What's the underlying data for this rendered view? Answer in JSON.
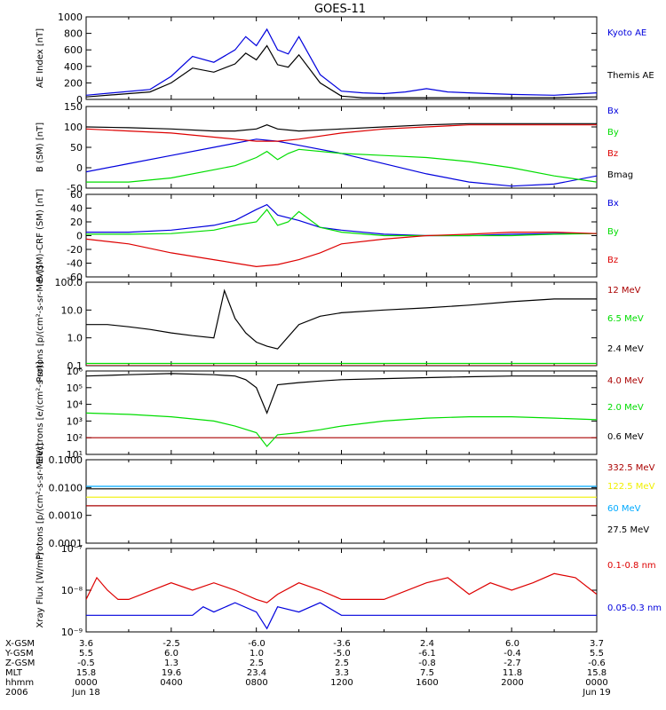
{
  "title": "GOES-11",
  "colors": {
    "black": "#000000",
    "blue": "#0000dd",
    "green": "#00dd00",
    "red": "#dd0000",
    "darkred": "#aa0000",
    "cyan": "#00aaff",
    "yellow": "#f0f000"
  },
  "chart_data": [
    {
      "id": "ae",
      "type": "line",
      "ylabel": "AE Index [nT]",
      "ylim": [
        0,
        1000
      ],
      "yscale": "linear",
      "yticks": [
        "0",
        "200",
        "400",
        "600",
        "800",
        "1000"
      ],
      "series": [
        {
          "name": "Kyoto AE",
          "color": "blue",
          "x": [
            0,
            3,
            4,
            5,
            6,
            7,
            7.5,
            8,
            8.5,
            9,
            9.5,
            10,
            11,
            12,
            13,
            14,
            15,
            16,
            17,
            18,
            20,
            22,
            24
          ],
          "y": [
            50,
            120,
            280,
            520,
            450,
            600,
            760,
            650,
            850,
            600,
            550,
            760,
            300,
            100,
            80,
            70,
            90,
            130,
            90,
            80,
            60,
            50,
            80
          ]
        },
        {
          "name": "Themis AE",
          "color": "black",
          "x": [
            0,
            3,
            4,
            5,
            6,
            7,
            7.5,
            8,
            8.5,
            9,
            9.5,
            10,
            11,
            12,
            13,
            14,
            15,
            16,
            17,
            18,
            20,
            22,
            24
          ],
          "y": [
            30,
            90,
            200,
            380,
            330,
            430,
            560,
            480,
            650,
            420,
            390,
            540,
            200,
            40,
            20,
            20,
            20,
            20,
            20,
            20,
            20,
            20,
            30
          ]
        }
      ]
    },
    {
      "id": "bsm",
      "type": "line",
      "ylabel": "B (SM) [nT]",
      "ylim": [
        -50,
        150
      ],
      "yscale": "linear",
      "yticks": [
        "-50",
        "0",
        "50",
        "100",
        "150"
      ],
      "series": [
        {
          "name": "Bx",
          "color": "blue",
          "x": [
            0,
            2,
            4,
            6,
            7,
            8,
            9,
            10,
            12,
            14,
            16,
            18,
            20,
            22,
            24
          ],
          "y": [
            -10,
            10,
            30,
            50,
            60,
            70,
            65,
            55,
            35,
            10,
            -15,
            -35,
            -45,
            -40,
            -20
          ]
        },
        {
          "name": "By",
          "color": "green",
          "x": [
            0,
            2,
            4,
            6,
            7,
            8,
            8.5,
            9,
            9.5,
            10,
            12,
            14,
            16,
            18,
            20,
            22,
            24
          ],
          "y": [
            -35,
            -35,
            -25,
            -5,
            5,
            25,
            40,
            20,
            35,
            45,
            35,
            30,
            25,
            15,
            0,
            -20,
            -35
          ]
        },
        {
          "name": "Bz",
          "color": "red",
          "x": [
            0,
            2,
            4,
            6,
            7,
            8,
            9,
            10,
            12,
            14,
            16,
            18,
            20,
            22,
            24
          ],
          "y": [
            95,
            90,
            85,
            75,
            70,
            65,
            65,
            70,
            85,
            95,
            100,
            105,
            105,
            105,
            105
          ]
        },
        {
          "name": "Bmag",
          "color": "black",
          "x": [
            0,
            2,
            4,
            6,
            7,
            8,
            8.5,
            9,
            10,
            12,
            14,
            16,
            18,
            20,
            22,
            24
          ],
          "y": [
            100,
            98,
            95,
            90,
            90,
            95,
            105,
            95,
            90,
            95,
            100,
            105,
            108,
            108,
            108,
            108
          ]
        }
      ]
    },
    {
      "id": "bdiff",
      "type": "line",
      "ylabel": "B (SM)-CRF (SM) [nT]",
      "ylim": [
        -60,
        60
      ],
      "yscale": "linear",
      "yticks": [
        "-60",
        "-40",
        "-20",
        "0",
        "20",
        "40",
        "60"
      ],
      "series": [
        {
          "name": "Bx",
          "color": "blue",
          "x": [
            0,
            2,
            4,
            6,
            7,
            8,
            8.5,
            9,
            10,
            11,
            12,
            14,
            16,
            18,
            20,
            22,
            24
          ],
          "y": [
            5,
            5,
            8,
            15,
            22,
            38,
            45,
            30,
            22,
            12,
            8,
            2,
            0,
            0,
            2,
            3,
            3
          ]
        },
        {
          "name": "By",
          "color": "green",
          "x": [
            0,
            2,
            4,
            6,
            7,
            8,
            8.5,
            9,
            9.5,
            10,
            11,
            12,
            14,
            16,
            18,
            20,
            22,
            24
          ],
          "y": [
            2,
            2,
            3,
            8,
            15,
            20,
            38,
            15,
            20,
            35,
            12,
            5,
            0,
            0,
            0,
            0,
            2,
            3
          ]
        },
        {
          "name": "Bz",
          "color": "red",
          "x": [
            0,
            2,
            4,
            6,
            7,
            8,
            9,
            10,
            11,
            12,
            14,
            16,
            18,
            20,
            22,
            24
          ],
          "y": [
            -5,
            -12,
            -25,
            -35,
            -40,
            -45,
            -42,
            -35,
            -25,
            -12,
            -5,
            0,
            2,
            5,
            5,
            3
          ]
        }
      ]
    },
    {
      "id": "protons_low",
      "type": "line",
      "ylabel": "Protons [p/(cm²-s-sr-MeV)]",
      "ylim": [
        0.1,
        100
      ],
      "yscale": "log",
      "yticks": [
        "0.1",
        "1.0",
        "10.0",
        "100.0"
      ],
      "series": [
        {
          "name": "12 MeV",
          "color": "darkred",
          "x": [
            0,
            24
          ],
          "y": [
            0.1,
            0.1
          ]
        },
        {
          "name": "6.5 MeV",
          "color": "green",
          "x": [
            0,
            24
          ],
          "y": [
            0.12,
            0.12
          ]
        },
        {
          "name": "2.4 MeV",
          "color": "black",
          "x": [
            0,
            1,
            2,
            3,
            4,
            5,
            6,
            6.5,
            7,
            7.5,
            8,
            8.5,
            9,
            10,
            11,
            12,
            14,
            16,
            18,
            20,
            22,
            24
          ],
          "y": [
            3,
            3,
            2.5,
            2,
            1.5,
            1.2,
            1.0,
            50,
            5,
            1.5,
            0.7,
            0.5,
            0.4,
            3,
            6,
            8,
            10,
            12,
            15,
            20,
            25,
            25
          ]
        }
      ]
    },
    {
      "id": "electrons",
      "type": "line",
      "ylabel": "Electrons [e/(cm²-s-sr)]",
      "ylim": [
        10,
        1000000
      ],
      "yscale": "log",
      "yticks": [
        "10¹",
        "10²",
        "10³",
        "10⁴",
        "10⁵",
        "10⁶"
      ],
      "series": [
        {
          "name": "4.0 MeV",
          "color": "darkred",
          "x": [
            0,
            24
          ],
          "y": [
            100,
            100
          ]
        },
        {
          "name": "2.0 MeV",
          "color": "green",
          "x": [
            0,
            2,
            4,
            6,
            7,
            8,
            8.5,
            9,
            10,
            11,
            12,
            14,
            16,
            18,
            20,
            22,
            24
          ],
          "y": [
            3000,
            2500,
            1800,
            1000,
            500,
            200,
            30,
            150,
            200,
            300,
            500,
            1000,
            1500,
            1800,
            1800,
            1500,
            1200
          ]
        },
        {
          "name": "0.6 MeV",
          "color": "black",
          "x": [
            0,
            2,
            4,
            6,
            7,
            7.5,
            8,
            8.5,
            9,
            10,
            11,
            12,
            14,
            16,
            18,
            20,
            22,
            24
          ],
          "y": [
            500000,
            600000,
            700000,
            600000,
            500000,
            300000,
            100000,
            3000,
            150000,
            200000,
            250000,
            300000,
            350000,
            400000,
            450000,
            500000,
            500000,
            500000
          ]
        }
      ]
    },
    {
      "id": "protons_high",
      "type": "line",
      "ylabel": "Protons [p/(cm²-s-sr-MeV)]",
      "ylim": [
        0.0001,
        0.1
      ],
      "yscale": "log",
      "yticks": [
        "0.0001",
        "0.0010",
        "0.0100",
        "0.1000"
      ],
      "series": [
        {
          "name": "332.5 MeV",
          "color": "darkred",
          "x": [
            0,
            24
          ],
          "y": [
            0.0022,
            0.0022
          ]
        },
        {
          "name": "122.5 MeV",
          "color": "yellow",
          "x": [
            0,
            24
          ],
          "y": [
            0.0045,
            0.0045
          ]
        },
        {
          "name": "60 MeV",
          "color": "cyan",
          "x": [
            0,
            24
          ],
          "y": [
            0.011,
            0.011
          ]
        },
        {
          "name": "27.5 MeV",
          "color": "black",
          "x": [
            0,
            24
          ],
          "y": [
            0.009,
            0.009
          ]
        }
      ]
    },
    {
      "id": "xray",
      "type": "line",
      "ylabel": "Xray Flux [W/m²]",
      "ylim": [
        1e-09,
        1e-07
      ],
      "yscale": "log",
      "yticks": [
        "10⁻⁹",
        "10⁻⁸",
        "10⁻⁷"
      ],
      "series": [
        {
          "name": "0.1-0.8 nm",
          "color": "red",
          "x": [
            0,
            0.5,
            1,
            1.5,
            2,
            4,
            5,
            6,
            7,
            8,
            8.5,
            9,
            10,
            11,
            12,
            14,
            16,
            17,
            18,
            19,
            20,
            21,
            22,
            23,
            24
          ],
          "y": [
            6e-09,
            2e-08,
            1e-08,
            6e-09,
            6e-09,
            1.5e-08,
            1e-08,
            1.5e-08,
            1e-08,
            6e-09,
            5e-09,
            8e-09,
            1.5e-08,
            1e-08,
            6e-09,
            6e-09,
            1.5e-08,
            2e-08,
            8e-09,
            1.5e-08,
            1e-08,
            1.5e-08,
            2.5e-08,
            2e-08,
            8e-09
          ]
        },
        {
          "name": "0.05-0.3 nm",
          "color": "blue",
          "x": [
            0,
            5,
            5.5,
            6,
            7,
            8,
            8.5,
            9,
            10,
            11,
            12,
            24
          ],
          "y": [
            2.5e-09,
            2.5e-09,
            4e-09,
            3e-09,
            5e-09,
            3e-09,
            1.2e-09,
            4e-09,
            3e-09,
            5e-09,
            2.5e-09,
            2.5e-09
          ]
        }
      ]
    }
  ],
  "footer": {
    "rows": [
      {
        "label": "X-GSM",
        "values": [
          "3.6",
          "-2.5",
          "-6.0",
          "-3.6",
          "2.4",
          "6.0",
          "3.7"
        ]
      },
      {
        "label": "Y-GSM",
        "values": [
          "5.5",
          "6.0",
          "1.0",
          "-5.0",
          "-6.1",
          "-0.4",
          "5.5"
        ]
      },
      {
        "label": "Z-GSM",
        "values": [
          "-0.5",
          "1.3",
          "2.5",
          "2.5",
          "-0.8",
          "-2.7",
          "-0.6"
        ]
      },
      {
        "label": "MLT",
        "values": [
          "15.8",
          "19.6",
          "23.4",
          "3.3",
          "7.5",
          "11.8",
          "15.8"
        ]
      },
      {
        "label": "hhmm",
        "values": [
          "0000",
          "0400",
          "0800",
          "1200",
          "1600",
          "2000",
          "0000"
        ]
      },
      {
        "label": "2006",
        "values": [
          "Jun 18",
          "",
          "",
          "",
          "",
          "",
          "Jun 19"
        ]
      }
    ]
  }
}
